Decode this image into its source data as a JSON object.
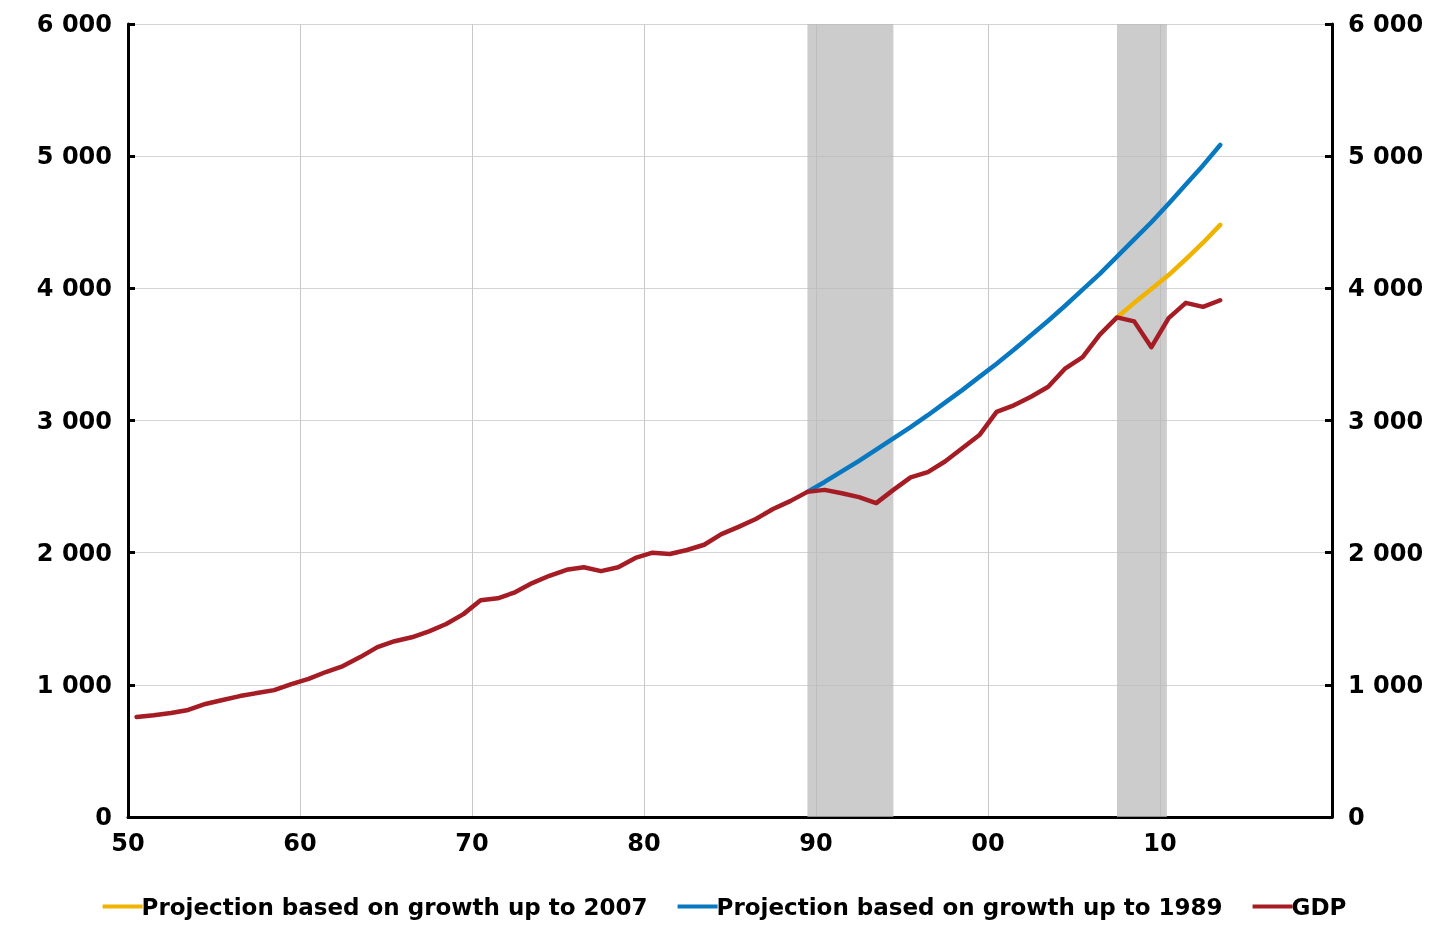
{
  "chart_data": {
    "type": "line",
    "x": [
      1950.5,
      1951.5,
      1952.5,
      1953.5,
      1954.5,
      1955.5,
      1956.5,
      1957.5,
      1958.5,
      1959.5,
      1960.5,
      1961.5,
      1962.5,
      1963.5,
      1964.5,
      1965.5,
      1966.5,
      1967.5,
      1968.5,
      1969.5,
      1970.5,
      1971.5,
      1972.5,
      1973.5,
      1974.5,
      1975.5,
      1976.5,
      1977.5,
      1978.5,
      1979.5,
      1980.5,
      1981.5,
      1982.5,
      1983.5,
      1984.5,
      1985.5,
      1986.5,
      1987.5,
      1988.5,
      1989.5,
      1990.5,
      1991.5,
      1992.5,
      1993.5,
      1994.5,
      1995.5,
      1996.5,
      1997.5,
      1998.5,
      1999.5,
      2000.5,
      2001.5,
      2002.5,
      2003.5,
      2004.5,
      2005.5,
      2006.5,
      2007.5,
      2008.5,
      2009.5,
      2010.5,
      2011.5,
      2012.5,
      2013.5
    ],
    "series": [
      {
        "name": "Projection based on growth up to 2007",
        "color": "#f0b400",
        "x": [
          2007.5,
          2008.5,
          2009.5,
          2010.5,
          2011.5,
          2012.5,
          2013.5
        ],
        "values": [
          3780,
          3890,
          3995,
          4100,
          4220,
          4345,
          4480
        ]
      },
      {
        "name": "Projection based on growth up to 1989",
        "color": "#0878c0",
        "x": [
          1989.5,
          1990.5,
          1991.5,
          1992.5,
          1993.5,
          1994.5,
          1995.5,
          1996.5,
          1997.5,
          1998.5,
          1999.5,
          2000.5,
          2001.5,
          2002.5,
          2003.5,
          2004.5,
          2005.5,
          2006.5,
          2007.5,
          2008.5,
          2009.5,
          2010.5,
          2011.5,
          2012.5,
          2013.5
        ],
        "values": [
          2460,
          2535,
          2615,
          2695,
          2780,
          2865,
          2950,
          3040,
          3135,
          3230,
          3330,
          3430,
          3535,
          3645,
          3755,
          3870,
          3990,
          4110,
          4240,
          4370,
          4500,
          4640,
          4785,
          4930,
          5085
        ]
      },
      {
        "name": "GDP",
        "color": "#a51c24",
        "values": [
          757,
          770,
          787,
          810,
          855,
          885,
          915,
          938,
          960,
          1005,
          1045,
          1097,
          1142,
          1210,
          1285,
          1330,
          1360,
          1405,
          1460,
          1535,
          1640,
          1655,
          1700,
          1770,
          1825,
          1870,
          1890,
          1860,
          1890,
          1960,
          2000,
          1990,
          2020,
          2060,
          2140,
          2195,
          2255,
          2330,
          2390,
          2460,
          2475,
          2450,
          2420,
          2375,
          2475,
          2570,
          2610,
          2690,
          2790,
          2890,
          3065,
          3115,
          3180,
          3255,
          3395,
          3480,
          3650,
          3780,
          3750,
          3555,
          3775,
          3890,
          3860,
          3910
        ]
      }
    ],
    "xlim": [
      1950,
      2020
    ],
    "xticks": [
      {
        "value": 1950,
        "label": "50"
      },
      {
        "value": 1960,
        "label": "60"
      },
      {
        "value": 1970,
        "label": "70"
      },
      {
        "value": 1980,
        "label": "80"
      },
      {
        "value": 1990,
        "label": "90"
      },
      {
        "value": 2000,
        "label": "00"
      },
      {
        "value": 2010,
        "label": "10"
      },
      {
        "value": 2020,
        "label": null
      }
    ],
    "ylim": [
      0,
      6000
    ],
    "yticks": [
      0,
      {
        "value": 1000,
        "label": "1 000"
      },
      {
        "value": 2000,
        "label": "2 000"
      },
      {
        "value": 3000,
        "label": "3 000"
      },
      {
        "value": 4000,
        "label": "4 000"
      },
      {
        "value": 5000,
        "label": "5 000"
      },
      {
        "value": 6000,
        "label": "6 000"
      }
    ],
    "y2lim": [
      0,
      6000
    ],
    "y2ticks": [
      0,
      {
        "value": 1000,
        "label": "1 000"
      },
      {
        "value": 2000,
        "label": "2 000"
      },
      {
        "value": 3000,
        "label": "3 000"
      },
      {
        "value": 4000,
        "label": "4 000"
      },
      {
        "value": 5000,
        "label": "5 000"
      },
      {
        "value": 6000,
        "label": "6 000"
      }
    ],
    "bands": [
      {
        "axis": "x",
        "from": 1989.5,
        "to": 1994.5,
        "color": "#bbbbbb"
      },
      {
        "axis": "x",
        "from": 2007.5,
        "to": 2010.4,
        "color": "#bbbbbb"
      }
    ],
    "grid": true,
    "legend": "bottom",
    "marker": "none",
    "line_style": "solid"
  }
}
